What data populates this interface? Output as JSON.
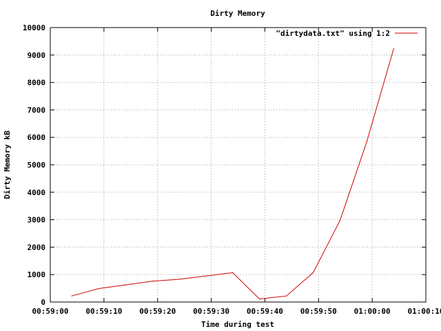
{
  "chart_data": {
    "type": "line",
    "title": "Dirty Memory",
    "xlabel": "Time during test",
    "ylabel": "Dirty Memory kB",
    "x_type": "time",
    "xlim": [
      "00:59:00",
      "01:00:10"
    ],
    "ylim": [
      0,
      10000
    ],
    "x_ticks": [
      "00:59:00",
      "00:59:10",
      "00:59:20",
      "00:59:30",
      "00:59:40",
      "00:59:50",
      "01:00:00",
      "01:00:10"
    ],
    "y_ticks": [
      0,
      1000,
      2000,
      3000,
      4000,
      5000,
      6000,
      7000,
      8000,
      9000,
      10000
    ],
    "grid": true,
    "legend_position": "top-right",
    "series": [
      {
        "name": "\"dirtydata.txt\" using 1:2",
        "color": "#cc0000",
        "x": [
          "00:59:04",
          "00:59:09",
          "00:59:14",
          "00:59:19",
          "00:59:24",
          "00:59:29",
          "00:59:34",
          "00:59:39",
          "00:59:44",
          "00:59:49",
          "00:59:54",
          "00:59:59",
          "01:00:04"
        ],
        "y": [
          220,
          490,
          620,
          760,
          830,
          950,
          1070,
          110,
          220,
          1070,
          2970,
          5850,
          9230
        ]
      }
    ]
  }
}
